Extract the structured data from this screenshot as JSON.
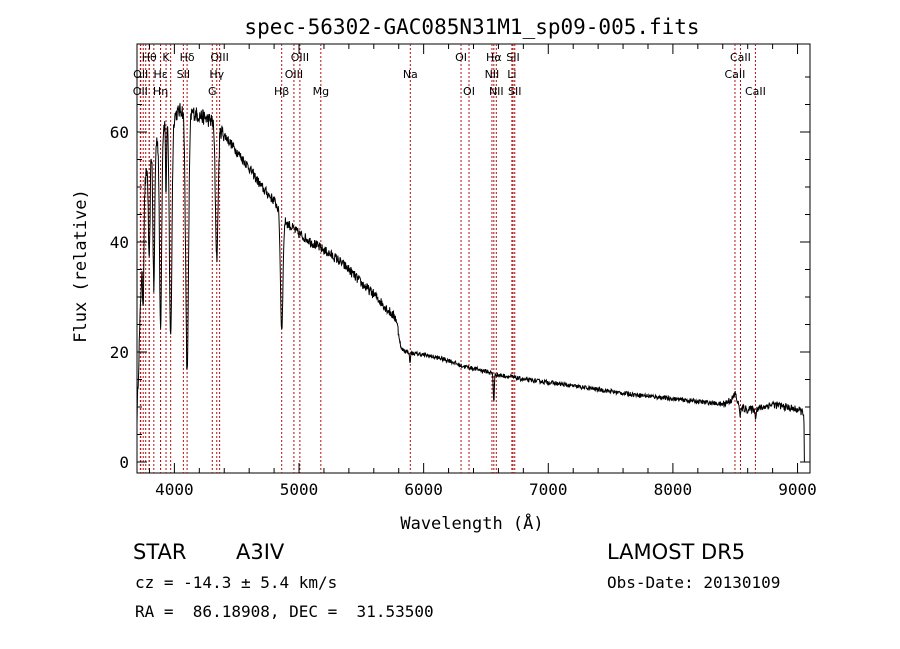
{
  "chart_data": {
    "type": "line",
    "title": "spec-56302-GAC085N31M1_sp09-005.fits",
    "xlabel": "Wavelength (Å)",
    "ylabel": "Flux (relative)",
    "xlim": [
      3700,
      9100
    ],
    "ylim": [
      -2,
      76
    ],
    "x_ticks": [
      4000,
      5000,
      6000,
      7000,
      8000,
      9000
    ],
    "y_ticks": [
      0,
      20,
      40,
      60
    ],
    "grid": false,
    "color": "#000000",
    "continuum": [
      [
        3700,
        8
      ],
      [
        3730,
        30
      ],
      [
        3760,
        50
      ],
      [
        3800,
        56
      ],
      [
        3850,
        58
      ],
      [
        3900,
        61
      ],
      [
        3950,
        62
      ],
      [
        4000,
        63
      ],
      [
        4050,
        64
      ],
      [
        4100,
        64
      ],
      [
        4150,
        63.5
      ],
      [
        4200,
        63
      ],
      [
        4250,
        62.5
      ],
      [
        4300,
        62
      ],
      [
        4350,
        61
      ],
      [
        4400,
        59.5
      ],
      [
        4500,
        56.5
      ],
      [
        4600,
        53.5
      ],
      [
        4700,
        50
      ],
      [
        4800,
        47.5
      ],
      [
        4900,
        43.5
      ],
      [
        5000,
        41.5
      ],
      [
        5100,
        40
      ],
      [
        5200,
        38.5
      ],
      [
        5300,
        37
      ],
      [
        5400,
        35
      ],
      [
        5500,
        32.5
      ],
      [
        5600,
        30.5
      ],
      [
        5700,
        28
      ],
      [
        5780,
        26
      ],
      [
        5820,
        20.5
      ],
      [
        5900,
        19.8
      ],
      [
        6000,
        19.5
      ],
      [
        6100,
        19
      ],
      [
        6200,
        18.5
      ],
      [
        6300,
        17.5
      ],
      [
        6400,
        17
      ],
      [
        6500,
        16.5
      ],
      [
        6600,
        15.8
      ],
      [
        6700,
        15.5
      ],
      [
        6800,
        15
      ],
      [
        7000,
        14.5
      ],
      [
        7200,
        13.8
      ],
      [
        7400,
        13.2
      ],
      [
        7600,
        12.5
      ],
      [
        7800,
        12
      ],
      [
        8000,
        11.5
      ],
      [
        8200,
        11
      ],
      [
        8400,
        10.5
      ],
      [
        8480,
        11.5
      ],
      [
        8500,
        12.5
      ],
      [
        8530,
        10
      ],
      [
        8600,
        9.5
      ],
      [
        8700,
        9.8
      ],
      [
        8800,
        10.5
      ],
      [
        8900,
        10
      ],
      [
        9000,
        9.5
      ],
      [
        9050,
        9
      ],
      [
        9060,
        0
      ]
    ],
    "absorption": [
      {
        "center": 3750,
        "depth": 14,
        "width": 8
      },
      {
        "center": 3798,
        "depth": 20,
        "width": 9
      },
      {
        "center": 3835,
        "depth": 26,
        "width": 10
      },
      {
        "center": 3889,
        "depth": 36,
        "width": 12
      },
      {
        "center": 3933,
        "depth": 14,
        "width": 5
      },
      {
        "center": 3970,
        "depth": 40,
        "width": 14
      },
      {
        "center": 4102,
        "depth": 48,
        "width": 16
      },
      {
        "center": 4340,
        "depth": 24,
        "width": 15
      },
      {
        "center": 4861,
        "depth": 21,
        "width": 14
      },
      {
        "center": 5890,
        "depth": 2,
        "width": 5
      },
      {
        "center": 6563,
        "depth": 5,
        "width": 6
      },
      {
        "center": 8542,
        "depth": 1.5,
        "width": 6
      },
      {
        "center": 8662,
        "depth": 1.5,
        "width": 6
      }
    ],
    "line_markers": [
      {
        "wavelength": 3727,
        "label": "OII",
        "row": 3
      },
      {
        "wavelength": 3730,
        "label": "OII",
        "row": 2
      },
      {
        "wavelength": 3750,
        "label": "",
        "row": 0
      },
      {
        "wavelength": 3770,
        "label": "",
        "row": 0
      },
      {
        "wavelength": 3798,
        "label": "",
        "row": 0
      },
      {
        "wavelength": 3835,
        "label": "",
        "row": 0
      },
      {
        "wavelength": 3889,
        "label": "Hη",
        "row": 3
      },
      {
        "wavelength": 3798,
        "label": "Hθ",
        "row": 1
      },
      {
        "wavelength": 3933,
        "label": "K",
        "row": 1
      },
      {
        "wavelength": 3889,
        "label": "Hε",
        "row": 2
      },
      {
        "wavelength": 3970,
        "label": "",
        "row": 0
      },
      {
        "wavelength": 4072,
        "label": "SII",
        "row": 2
      },
      {
        "wavelength": 4102,
        "label": "Hδ",
        "row": 1
      },
      {
        "wavelength": 4304,
        "label": "G",
        "row": 3
      },
      {
        "wavelength": 4340,
        "label": "Hγ",
        "row": 2
      },
      {
        "wavelength": 4363,
        "label": "OIII",
        "row": 1
      },
      {
        "wavelength": 4861,
        "label": "Hβ",
        "row": 3
      },
      {
        "wavelength": 4959,
        "label": "OIII",
        "row": 2
      },
      {
        "wavelength": 5007,
        "label": "OIII",
        "row": 1
      },
      {
        "wavelength": 5175,
        "label": "Mg",
        "row": 3
      },
      {
        "wavelength": 5893,
        "label": "Na",
        "row": 2
      },
      {
        "wavelength": 6300,
        "label": "OI",
        "row": 1
      },
      {
        "wavelength": 6364,
        "label": "OI",
        "row": 3
      },
      {
        "wavelength": 6548,
        "label": "NII",
        "row": 2
      },
      {
        "wavelength": 6563,
        "label": "Hα",
        "row": 1
      },
      {
        "wavelength": 6583,
        "label": "NII",
        "row": 3
      },
      {
        "wavelength": 6708,
        "label": "Li",
        "row": 2
      },
      {
        "wavelength": 6717,
        "label": "SII",
        "row": 1
      },
      {
        "wavelength": 6731,
        "label": "SII",
        "row": 3
      },
      {
        "wavelength": 8498,
        "label": "CaII",
        "row": 2
      },
      {
        "wavelength": 8542,
        "label": "CaII",
        "row": 1
      },
      {
        "wavelength": 8662,
        "label": "CaII",
        "row": 3
      }
    ]
  },
  "info": {
    "object_class": "STAR",
    "subclass": "A3IV",
    "survey": "LAMOST DR5",
    "cz": "cz = -14.3 ± 5.4 km/s",
    "obs_date": "Obs-Date: 20130109",
    "coords": "RA =  86.18908, DEC =  31.53500"
  }
}
